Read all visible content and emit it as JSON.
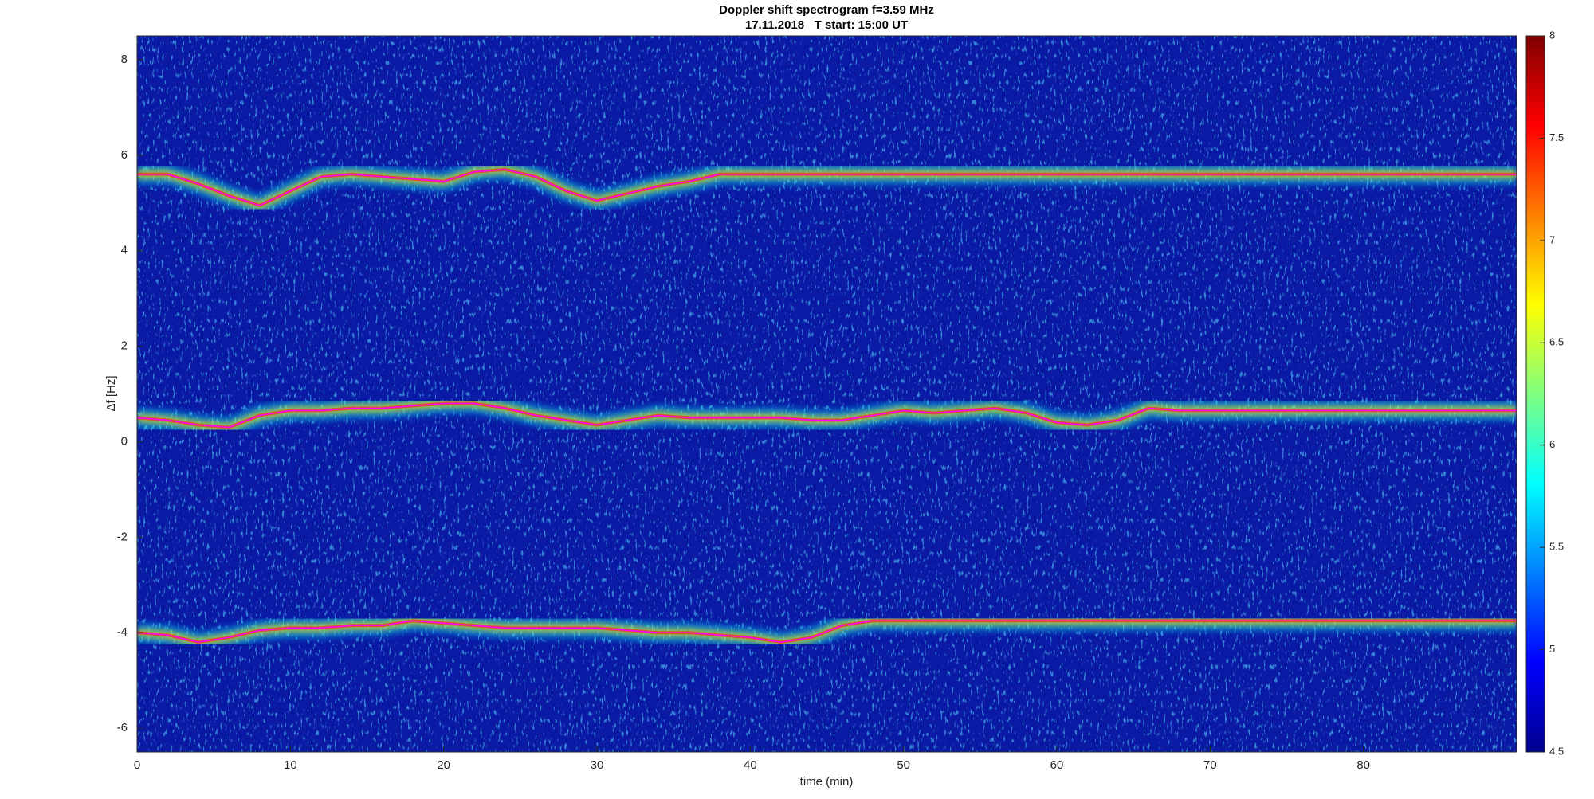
{
  "chart_data": {
    "type": "spectrogram",
    "title": "Doppler shift spectrogram f=3.59 MHz",
    "subtitle": "17.11.2018   T start: 15:00 UT",
    "xlabel": "time (min)",
    "ylabel": "Δf [Hz]",
    "xlim": [
      0,
      90
    ],
    "ylim": [
      -6.5,
      8.5
    ],
    "xticks": [
      0,
      10,
      20,
      30,
      40,
      50,
      60,
      70,
      80
    ],
    "yticks": [
      -6,
      -4,
      -2,
      0,
      2,
      4,
      6,
      8
    ],
    "x": [
      0,
      2,
      4,
      6,
      8,
      10,
      12,
      14,
      16,
      18,
      20,
      22,
      24,
      26,
      28,
      30,
      32,
      34,
      36,
      38,
      40,
      42,
      44,
      46,
      48,
      50,
      52,
      54,
      56,
      58,
      60,
      62,
      64,
      66,
      68,
      70,
      72,
      74,
      76,
      78,
      80,
      82,
      84,
      86,
      88,
      90
    ],
    "series": [
      {
        "color": "#ff00ff",
        "values": [
          5.6,
          5.6,
          5.4,
          5.15,
          4.95,
          5.25,
          5.55,
          5.6,
          5.55,
          5.5,
          5.45,
          5.65,
          5.7,
          5.55,
          5.25,
          5.05,
          5.2,
          5.35,
          5.45,
          5.6,
          5.6,
          5.6,
          5.6,
          5.6,
          5.6,
          5.6,
          5.6,
          5.6,
          5.6,
          5.6,
          5.6,
          5.6,
          5.6,
          5.6,
          5.6,
          5.6,
          5.6,
          5.6,
          5.6,
          5.6,
          5.6,
          5.6,
          5.6,
          5.6,
          5.6,
          5.6
        ]
      },
      {
        "color": "#ff00ff",
        "values": [
          0.5,
          0.45,
          0.35,
          0.3,
          0.55,
          0.65,
          0.65,
          0.7,
          0.7,
          0.75,
          0.8,
          0.8,
          0.7,
          0.55,
          0.45,
          0.35,
          0.45,
          0.55,
          0.5,
          0.5,
          0.5,
          0.5,
          0.45,
          0.45,
          0.55,
          0.65,
          0.6,
          0.65,
          0.7,
          0.6,
          0.4,
          0.35,
          0.45,
          0.7,
          0.65,
          0.65,
          0.65,
          0.65,
          0.65,
          0.65,
          0.65,
          0.65,
          0.65,
          0.65,
          0.65,
          0.65
        ]
      },
      {
        "color": "#ff00ff",
        "values": [
          -4.0,
          -4.05,
          -4.2,
          -4.1,
          -3.95,
          -3.9,
          -3.9,
          -3.85,
          -3.85,
          -3.75,
          -3.8,
          -3.85,
          -3.9,
          -3.9,
          -3.9,
          -3.9,
          -3.95,
          -4.0,
          -4.0,
          -4.05,
          -4.1,
          -4.2,
          -4.1,
          -3.85,
          -3.75,
          -3.75,
          -3.75,
          -3.75,
          -3.75,
          -3.75,
          -3.75,
          -3.75,
          -3.75,
          -3.75,
          -3.75,
          -3.75,
          -3.75,
          -3.75,
          -3.75,
          -3.75,
          -3.75,
          -3.75,
          -3.75,
          -3.75,
          -3.75,
          -3.75
        ]
      }
    ],
    "colormap": "jet",
    "colorbar_lim": [
      4.5,
      8
    ],
    "colorbar_ticks": [
      4.5,
      5,
      5.5,
      6,
      6.5,
      7,
      7.5,
      8
    ]
  }
}
